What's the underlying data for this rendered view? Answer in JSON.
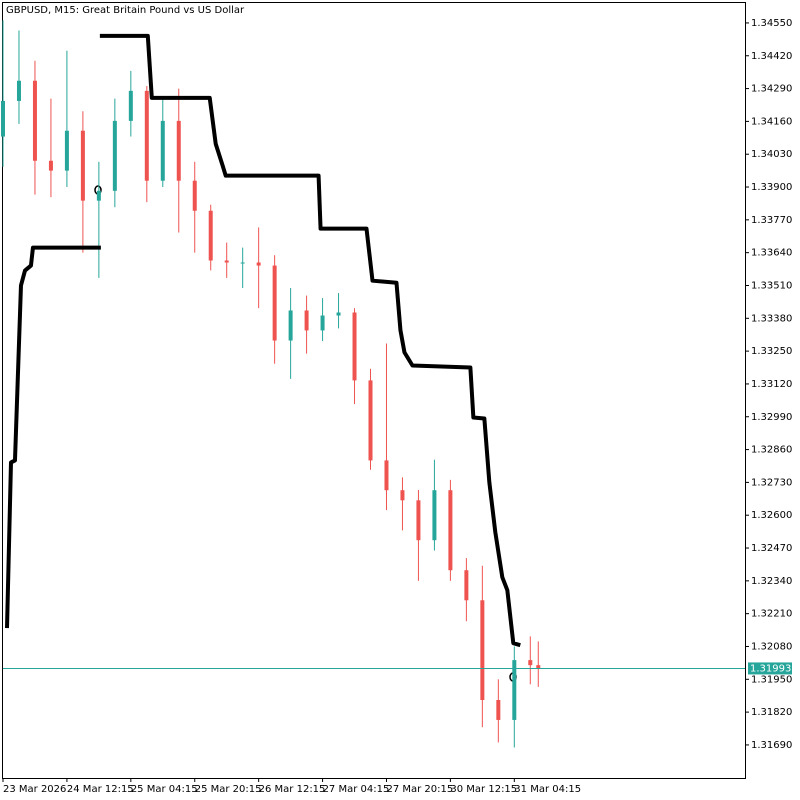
{
  "chart_data": {
    "type": "candlestick",
    "title": "GBPUSD, M15:  Great Britain Pound vs US Dollar",
    "x": [
      0,
      16,
      32,
      48,
      64,
      80,
      96,
      112,
      128,
      144,
      160,
      176,
      192,
      208,
      224,
      240,
      256,
      272,
      288,
      304,
      320,
      336,
      352,
      368,
      384,
      400,
      416,
      432,
      448,
      464,
      480,
      496,
      512,
      528,
      536
    ],
    "open": [
      1.341,
      1.34241,
      1.34321,
      1.34004,
      1.33965,
      1.34123,
      1.33846,
      1.33885,
      1.34162,
      1.34281,
      1.33925,
      1.34162,
      1.33925,
      1.33806,
      1.33609,
      1.33601,
      1.33601,
      1.33589,
      1.33292,
      1.33411,
      1.33332,
      1.33391,
      1.33403,
      1.33134,
      1.32817,
      1.32699,
      1.32659,
      1.32501,
      1.32699,
      1.32382,
      1.32263,
      1.31868,
      1.31789,
      1.32026,
      1.32006
    ],
    "high": [
      1.3456,
      1.3452,
      1.344,
      1.3425,
      1.3444,
      1.342,
      1.34,
      1.3425,
      1.3436,
      1.343,
      1.3426,
      1.3429,
      1.34,
      1.3383,
      1.3368,
      1.3366,
      1.3374,
      1.3363,
      1.335,
      1.3347,
      1.3346,
      1.3348,
      1.3342,
      1.3318,
      1.3328,
      1.3275,
      1.327,
      1.3282,
      1.3274,
      1.3243,
      1.324,
      1.3195,
      1.3208,
      1.3212,
      1.321
    ],
    "low": [
      1.3398,
      1.3415,
      1.3387,
      1.3386,
      1.339,
      1.3364,
      1.3354,
      1.3382,
      1.341,
      1.3384,
      1.339,
      1.3372,
      1.3364,
      1.3357,
      1.3354,
      1.335,
      1.3342,
      1.332,
      1.3314,
      1.3324,
      1.3329,
      1.3334,
      1.3304,
      1.3278,
      1.3262,
      1.3254,
      1.3234,
      1.3246,
      1.3234,
      1.3218,
      1.3176,
      1.317,
      1.3168,
      1.3193,
      1.3192
    ],
    "close": [
      1.34241,
      1.34321,
      1.34004,
      1.33965,
      1.34123,
      1.33846,
      1.33885,
      1.34162,
      1.34281,
      1.33925,
      1.34162,
      1.33925,
      1.33806,
      1.33609,
      1.33601,
      1.33601,
      1.33589,
      1.33292,
      1.33411,
      1.33332,
      1.33391,
      1.33403,
      1.33134,
      1.32817,
      1.32699,
      1.32659,
      1.32501,
      1.32699,
      1.32382,
      1.32263,
      1.31868,
      1.31789,
      1.32026,
      1.32006,
      1.31993
    ],
    "up_color": "#26a69a",
    "down_color": "#ef5350",
    "indicator": {
      "color": "#000000",
      "x": [
        4,
        8,
        12,
        18,
        22,
        28,
        30,
        98,
        null,
        97,
        145,
        149,
        207,
        213,
        220,
        223,
        316,
        318,
        364,
        370,
        394,
        398,
        402,
        410,
        468,
        471,
        482,
        487,
        493,
        500,
        505,
        511,
        518
      ],
      "values": [
        1.32153,
        1.32809,
        1.32817,
        1.3351,
        1.33569,
        1.33589,
        1.3366,
        1.3366,
        null,
        1.34499,
        1.34499,
        1.34253,
        1.34253,
        1.34071,
        1.33984,
        1.33945,
        1.33945,
        1.33735,
        1.33735,
        1.33529,
        1.33521,
        1.33332,
        1.33245,
        1.33193,
        1.33185,
        1.32987,
        1.32983,
        1.3273,
        1.32532,
        1.32354,
        1.32303,
        1.32093,
        1.32085
      ]
    },
    "last_price": 1.31993,
    "last_price_color": "#26a69a",
    "xlim": [
      0,
      743
    ],
    "xticks": [
      {
        "value": 0,
        "label": "23 Mar 2026"
      },
      {
        "value": 64,
        "label": "24 Mar 12:15"
      },
      {
        "value": 128,
        "label": "25 Mar 04:15"
      },
      {
        "value": 192,
        "label": "25 Mar 20:15"
      },
      {
        "value": 256,
        "label": "26 Mar 12:15"
      },
      {
        "value": 320,
        "label": "27 Mar 04:15"
      },
      {
        "value": 384,
        "label": "27 Mar 20:15"
      },
      {
        "value": 448,
        "label": "30 Mar 12:15"
      },
      {
        "value": 512,
        "label": "31 Mar 04:15"
      }
    ],
    "ylim": [
      1.31559,
      1.34629
    ],
    "yticks": [
      {
        "value": 1.3455,
        "label": "1.34550"
      },
      {
        "value": 1.3442,
        "label": "1.34420"
      },
      {
        "value": 1.3429,
        "label": "1.34290"
      },
      {
        "value": 1.3416,
        "label": "1.34160"
      },
      {
        "value": 1.3403,
        "label": "1.34030"
      },
      {
        "value": 1.339,
        "label": "1.33900"
      },
      {
        "value": 1.3377,
        "label": "1.33770"
      },
      {
        "value": 1.3364,
        "label": "1.33640"
      },
      {
        "value": 1.3351,
        "label": "1.33510"
      },
      {
        "value": 1.3338,
        "label": "1.33380"
      },
      {
        "value": 1.3325,
        "label": "1.33250"
      },
      {
        "value": 1.3312,
        "label": "1.33120"
      },
      {
        "value": 1.3299,
        "label": "1.32990"
      },
      {
        "value": 1.3286,
        "label": "1.32860"
      },
      {
        "value": 1.3273,
        "label": "1.32730"
      },
      {
        "value": 1.326,
        "label": "1.32600"
      },
      {
        "value": 1.3247,
        "label": "1.32470"
      },
      {
        "value": 1.3234,
        "label": "1.32340"
      },
      {
        "value": 1.3221,
        "label": "1.32210"
      },
      {
        "value": 1.3208,
        "label": "1.32080"
      },
      {
        "value": 1.3195,
        "label": "1.31950"
      },
      {
        "value": 1.3182,
        "label": "1.31820"
      },
      {
        "value": 1.3169,
        "label": "1.31690"
      }
    ],
    "grid": false
  }
}
